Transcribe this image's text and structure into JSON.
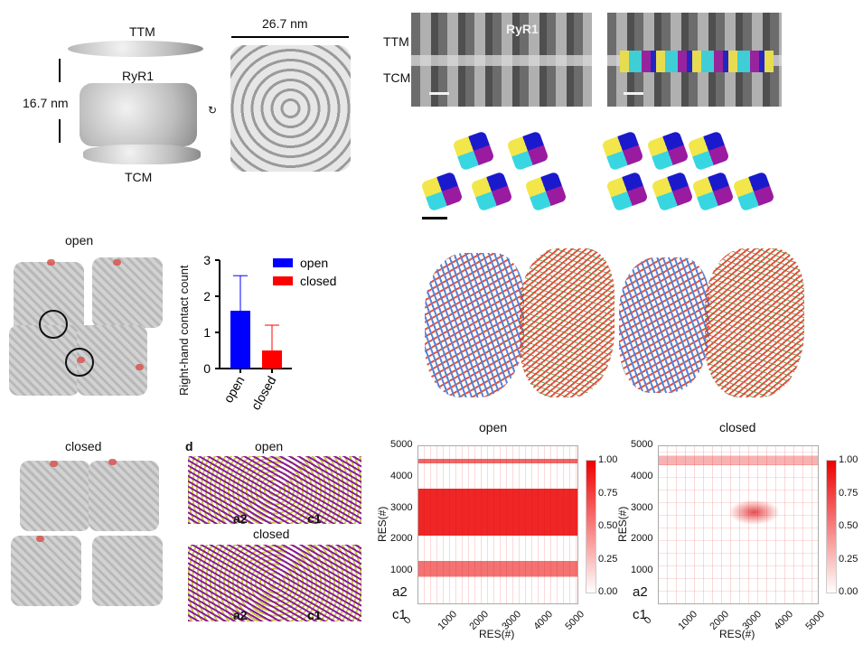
{
  "panel_a": {
    "ttm": "TTM",
    "ryr1": "RyR1",
    "tcm": "TCM",
    "height": "16.7 nm",
    "width": "26.7 nm"
  },
  "panel_b": {
    "ttm": "TTM",
    "tcm": "TCM",
    "ryr1": "RyR1"
  },
  "panel_c": {
    "open_label": "open",
    "closed_label": "closed"
  },
  "bar_chart": {
    "chart_data": {
      "type": "bar",
      "categories": [
        "open",
        "closed"
      ],
      "values": [
        1.6,
        0.5
      ],
      "errors": [
        0.97,
        0.7
      ],
      "colors": [
        "#0000ff",
        "#ff0000"
      ],
      "ylabel": "Right-hand contact count",
      "ylim": [
        0,
        3
      ],
      "yticks": [
        "0",
        "1",
        "2",
        "3"
      ],
      "legend": [
        "open",
        "closed"
      ],
      "legend_position": "top-right"
    }
  },
  "panel_d": {
    "letter": "d",
    "open_label": "open",
    "closed_label": "closed",
    "a2": "a2",
    "c1": "c1"
  },
  "heatmaps": [
    {
      "title": "open",
      "xlabel": "RES(#)",
      "ylabel": "RES(#)",
      "xticks": [
        "0",
        "1000",
        "2000",
        "3000",
        "4000",
        "5000"
      ],
      "yticks": [
        "0",
        "1000",
        "2000",
        "3000",
        "4000",
        "5000"
      ],
      "cbar": [
        "1.00",
        "0.75",
        "0.50",
        "0.25",
        "0.00"
      ],
      "a2": "a2",
      "c1": "c1"
    },
    {
      "title": "closed",
      "xlabel": "RES(#)",
      "ylabel": "RES(#)",
      "xticks": [
        "0",
        "1000",
        "2000",
        "3000",
        "4000",
        "5000"
      ],
      "yticks": [
        "0",
        "1000",
        "2000",
        "3000",
        "4000",
        "5000"
      ],
      "cbar": [
        "1.00",
        "0.75",
        "0.50",
        "0.25",
        "0.00"
      ],
      "a2": "a2",
      "c1": "c1"
    }
  ]
}
